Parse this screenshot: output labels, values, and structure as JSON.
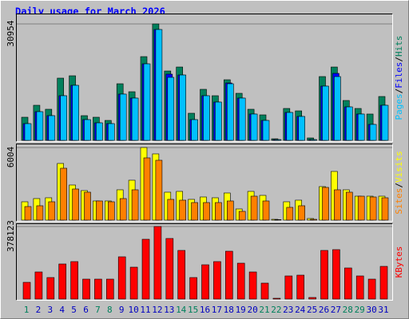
{
  "title": "Daily usage for March 2026",
  "legend_separator": "/",
  "categories": [
    "1",
    "2",
    "3",
    "4",
    "5",
    "6",
    "7",
    "8",
    "9",
    "10",
    "11",
    "12",
    "13",
    "14",
    "15",
    "16",
    "17",
    "18",
    "19",
    "20",
    "21",
    "22",
    "23",
    "24",
    "25",
    "26",
    "27",
    "28",
    "29",
    "30",
    "31"
  ],
  "category_colors": [
    "#00805c",
    "#0000c0",
    "#0000c0",
    "#0000c0",
    "#0000c0",
    "#0000c0",
    "#00805c",
    "#00805c",
    "#0000c0",
    "#0000c0",
    "#0000c0",
    "#0000c0",
    "#0000c0",
    "#00805c",
    "#00805c",
    "#0000c0",
    "#0000c0",
    "#0000c0",
    "#0000c0",
    "#0000c0",
    "#00805c",
    "#00805c",
    "#0000c0",
    "#0000c0",
    "#0000c0",
    "#0000c0",
    "#0000c0",
    "#00805c",
    "#00805c",
    "#0000c0",
    "#0000c0"
  ],
  "chart_data": [
    {
      "type": "bar",
      "ylim": [
        0,
        30954
      ],
      "yticks": [
        30954
      ],
      "series": [
        {
          "name": "Hits",
          "color": "#00805c",
          "values": [
            6150,
            9330,
            8270,
            16540,
            17170,
            6570,
            6150,
            5300,
            15050,
            12930,
            22260,
            30954,
            18440,
            19500,
            7210,
            13570,
            11870,
            16110,
            12510,
            8270,
            6780,
            420,
            8480,
            7840,
            640,
            16960,
            19500,
            10600,
            8480,
            7000,
            11660
          ]
        },
        {
          "name": "Files",
          "color": "#0000ff",
          "values": [
            4450,
            7630,
            6570,
            11870,
            14630,
            5510,
            4660,
            4450,
            12300,
            11240,
            20350,
            29470,
            17600,
            17380,
            5510,
            11870,
            10180,
            15260,
            11240,
            7000,
            5300,
            210,
            7420,
            6360,
            210,
            14420,
            17810,
            8900,
            7000,
            4240,
            9330
          ]
        },
        {
          "name": "Pages",
          "color": "#00c0ff",
          "values": [
            4450,
            7630,
            6570,
            11870,
            14630,
            5510,
            4660,
            4450,
            12300,
            11240,
            20350,
            29470,
            16750,
            17380,
            5510,
            11870,
            10180,
            15050,
            11240,
            7000,
            5300,
            210,
            7420,
            6360,
            210,
            14420,
            16960,
            8900,
            7000,
            4240,
            9330
          ]
        }
      ]
    },
    {
      "type": "bar",
      "ylim": [
        0,
        6004
      ],
      "yticks": [
        6004
      ],
      "series": [
        {
          "name": "Visits",
          "color": "#ffff00",
          "values": [
            1518,
            1782,
            1848,
            4686,
            2904,
            2442,
            1584,
            1584,
            2508,
            3300,
            6004,
            5478,
            2310,
            2376,
            1716,
            1914,
            1848,
            2244,
            924,
            2376,
            2046,
            66,
            1518,
            1650,
            132,
            2772,
            4026,
            2508,
            1980,
            1980,
            1980
          ]
        },
        {
          "name": "Sites",
          "color": "#ff8000",
          "values": [
            1122,
            1188,
            1518,
            4290,
            2574,
            2310,
            1584,
            1518,
            1782,
            2508,
            5148,
            4950,
            1716,
            1650,
            1452,
            1452,
            1452,
            1584,
            726,
            1980,
            1584,
            40,
            1056,
            1188,
            66,
            2706,
            2508,
            2310,
            1980,
            1914,
            1848
          ]
        }
      ]
    },
    {
      "type": "bar",
      "ylim": [
        0,
        378123
      ],
      "yticks": [
        378123
      ],
      "series": [
        {
          "name": "KBytes",
          "color": "#ff0000",
          "values": [
            87260,
            141270,
            112190,
            182820,
            195290,
            103880,
            103880,
            103880,
            220220,
            166200,
            311630,
            378123,
            315780,
            253460,
            112190,
            178670,
            195290,
            249300,
            186980,
            141270,
            83100,
            4155,
            120500,
            124650,
            8310,
            253460,
            257610,
            162050,
            120500,
            103880,
            170360
          ]
        }
      ]
    }
  ]
}
